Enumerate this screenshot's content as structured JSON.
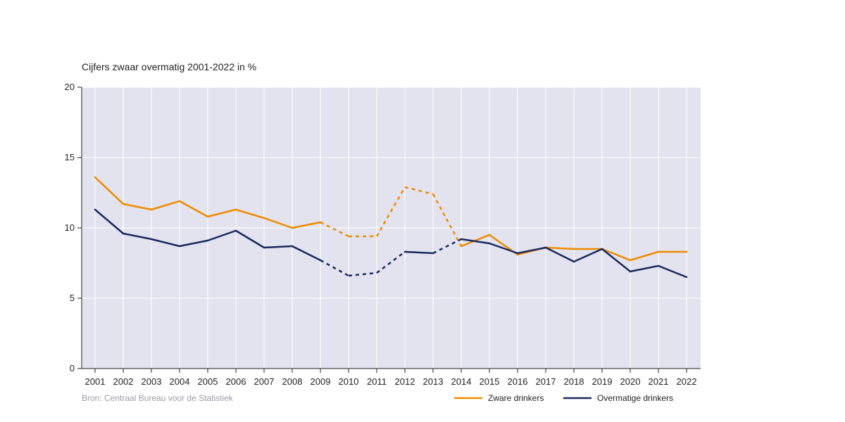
{
  "chart_data": {
    "type": "line",
    "title": "Cijfers zwaar overmatig 2001-2022 in %",
    "source": "Bron: Centraal Bureau voor de Statistiek",
    "x": [
      "2001",
      "2002",
      "2003",
      "2004",
      "2005",
      "2006",
      "2007",
      "2008",
      "2009",
      "2010",
      "2011",
      "2012",
      "2013",
      "2014",
      "2015",
      "2016",
      "2017",
      "2018",
      "2019",
      "2020",
      "2021",
      "2022"
    ],
    "ylim": [
      0,
      20
    ],
    "yticks": [
      0,
      5,
      10,
      15,
      20
    ],
    "grid": true,
    "legend_position": "bottom-right",
    "dashed_segments_note_years": [
      "2009",
      "2010",
      "2011",
      "2012",
      "2013",
      "2014"
    ],
    "series": [
      {
        "name": "Zware drinkers",
        "color": "#ee8b00",
        "values": [
          13.6,
          11.7,
          11.3,
          11.9,
          10.8,
          11.3,
          10.7,
          10.0,
          10.4,
          9.4,
          9.4,
          12.9,
          12.4,
          8.7,
          9.5,
          8.1,
          8.6,
          8.5,
          8.5,
          7.7,
          8.3,
          8.3
        ],
        "dashed_from": "2009",
        "dashed_to": "2014"
      },
      {
        "name": "Overmatige drinkers",
        "color": "#1a2a5e",
        "values": [
          11.3,
          9.6,
          9.2,
          8.7,
          9.1,
          9.8,
          8.6,
          8.7,
          7.7,
          6.6,
          6.8,
          8.3,
          8.2,
          9.2,
          8.9,
          8.2,
          8.6,
          7.6,
          8.5,
          6.9,
          7.3,
          6.5
        ],
        "dashed_from": "2009",
        "dashed_to": "2012",
        "dashed2_from": "2013",
        "dashed2_to": "2014"
      }
    ],
    "colors": {
      "plot_background": "#e3e3ef",
      "grid": "#ffffff",
      "axis": "#222222"
    }
  }
}
